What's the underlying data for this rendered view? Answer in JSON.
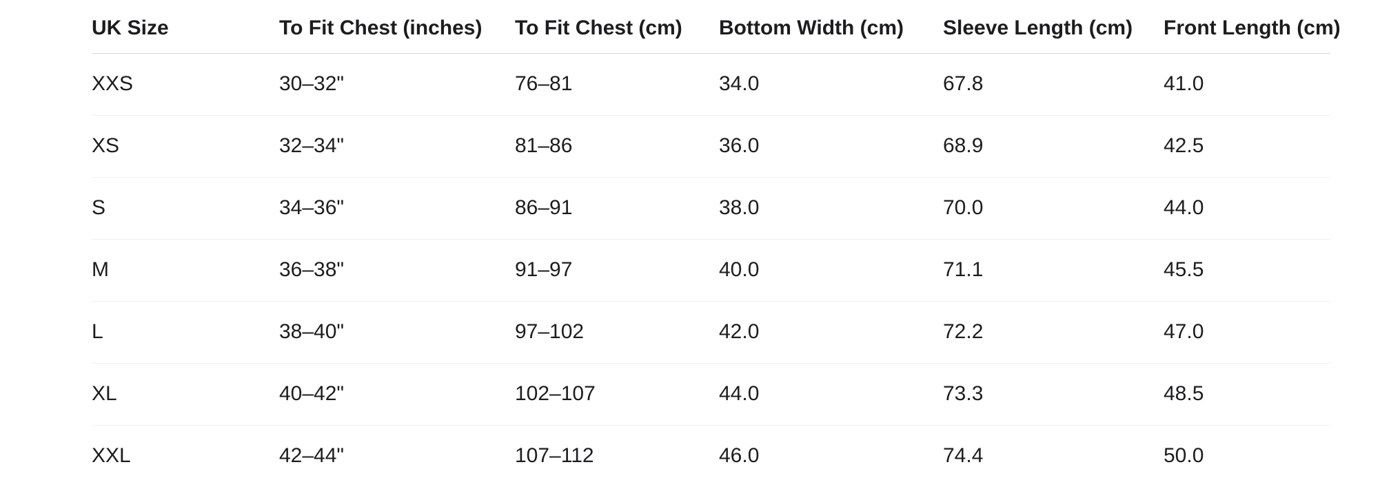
{
  "table": {
    "columns": [
      {
        "label": "UK Size"
      },
      {
        "label": "To Fit Chest (inches)"
      },
      {
        "label": "To Fit Chest (cm)"
      },
      {
        "label": "Bottom Width (cm)"
      },
      {
        "label": "Sleeve Length (cm)"
      },
      {
        "label": "Front Length (cm)"
      }
    ],
    "rows": [
      {
        "cells": [
          "XXS",
          "30–32\"",
          "76–81",
          "34.0",
          "67.8",
          "41.0"
        ]
      },
      {
        "cells": [
          "XS",
          "32–34\"",
          "81–86",
          "36.0",
          "68.9",
          "42.5"
        ]
      },
      {
        "cells": [
          "S",
          "34–36\"",
          "86–91",
          "38.0",
          "70.0",
          "44.0"
        ]
      },
      {
        "cells": [
          "M",
          "36–38\"",
          "91–97",
          "40.0",
          "71.1",
          "45.5"
        ]
      },
      {
        "cells": [
          "L",
          "38–40\"",
          "97–102",
          "42.0",
          "72.2",
          "47.0"
        ]
      },
      {
        "cells": [
          "XL",
          "40–42\"",
          "102–107",
          "44.0",
          "73.3",
          "48.5"
        ]
      },
      {
        "cells": [
          "XXL",
          "42–44\"",
          "107–112",
          "46.0",
          "74.4",
          "50.0"
        ]
      }
    ]
  },
  "colors": {
    "text": "#1d1d1f",
    "header_divider": "#d6d6d6",
    "row_divider": "#f0f0f0",
    "background": "#ffffff"
  }
}
